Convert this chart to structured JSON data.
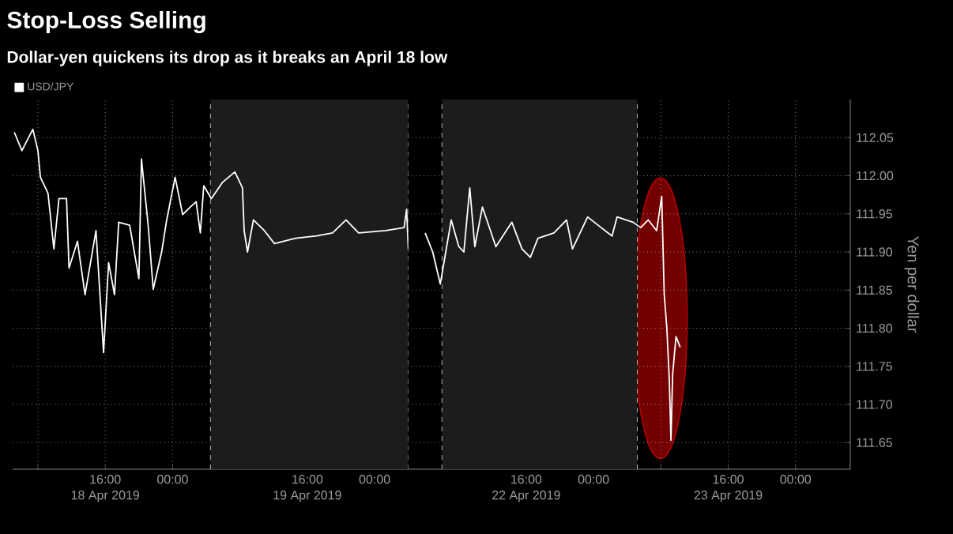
{
  "chart_data": [
    {
      "type": "line",
      "title": "Stop-Loss Selling",
      "subtitle": "Dollar-yen quickens its drop as it breaks an April 18 low",
      "x": [
        "2019-04-18T05:12",
        "2019-04-18T06:06",
        "2019-04-18T07:24",
        "2019-04-18T08:00",
        "2019-04-18T08:18",
        "2019-04-18T09:12",
        "2019-04-18T09:54",
        "2019-04-18T10:30",
        "2019-04-18T11:24",
        "2019-04-18T11:42",
        "2019-04-18T12:42",
        "2019-04-18T13:36",
        "2019-04-18T14:54",
        "2019-04-18T15:48",
        "2019-04-18T16:24",
        "2019-04-18T17:06",
        "2019-04-18T17:36",
        "2019-04-18T18:54",
        "2019-04-18T20:00",
        "2019-04-18T20:18",
        "2019-04-18T21:06",
        "2019-04-18T21:42",
        "2019-04-18T22:42",
        "2019-04-18T23:18",
        "2019-04-19T00:18",
        "2019-04-19T01:12",
        "2019-04-19T02:06",
        "2019-04-19T02:48",
        "2019-04-19T03:18",
        "2019-04-19T03:42",
        "2019-04-19T04:36",
        "2019-04-19T05:54",
        "2019-04-19T07:24",
        "2019-04-19T08:18",
        "2019-04-19T08:30",
        "2019-04-19T08:54",
        "2019-04-19T09:36",
        "2019-04-19T10:54",
        "2019-04-19T12:06",
        "2019-04-19T14:36",
        "2019-04-19T17:06",
        "2019-04-19T19:00",
        "2019-04-19T20:36",
        "2019-04-19T22:06",
        "2019-04-20T01:18",
        "2019-04-20T03:30",
        "2019-04-20T03:48",
        "2019-04-20T04:00"
      ],
      "series": [
        {
          "name": "USD/JPY",
          "color": "#ffffff",
          "values": [
            112.057,
            112.033,
            112.061,
            112.033,
            111.998,
            111.977,
            111.904,
            111.97,
            111.97,
            111.879,
            111.914,
            111.844,
            111.928,
            111.768,
            111.886,
            111.844,
            111.939,
            111.935,
            111.865,
            112.022,
            111.935,
            111.851,
            111.9,
            111.942,
            111.998,
            111.949,
            111.959,
            111.966,
            111.925,
            111.987,
            111.97,
            111.991,
            112.005,
            111.984,
            111.928,
            111.9,
            111.942,
            111.928,
            111.911,
            111.918,
            111.921,
            111.925,
            111.942,
            111.925,
            111.928,
            111.932,
            111.956,
            111.904
          ]
        }
      ],
      "xlim": [
        "2019-04-18T05:00",
        "2019-04-20T04:00"
      ],
      "xticks": [
        {
          "value": "2019-04-18T08:00",
          "label": null
        },
        {
          "value": "2019-04-18T16:00",
          "label": "16:00\n18 Apr 2019"
        },
        {
          "value": "2019-04-19T00:00",
          "label": "00:00"
        },
        {
          "value": "2019-04-19T08:00",
          "label": null
        },
        {
          "value": "2019-04-19T16:00",
          "label": "16:00\n19 Apr 2019"
        },
        {
          "value": "2019-04-20T00:00",
          "label": "00:00"
        }
      ],
      "ylim": [
        111.615,
        112.1
      ],
      "yticks": [
        111.65,
        111.7,
        111.75,
        111.8,
        111.85,
        111.9,
        111.95,
        112,
        112.05
      ],
      "tick_labels": "x",
      "bands": [
        {
          "axis": "x",
          "from": "2019-04-19T04:30",
          "to": "2019-04-20T04:00",
          "color": "#1c1c1c"
        }
      ],
      "ref_lines": [
        {
          "axis": "x",
          "value": "2019-04-19T04:30",
          "color": "#b2b2b2",
          "line_style": "dashed"
        },
        {
          "axis": "x",
          "value": "2019-04-20T04:00",
          "color": "#b2b2b2",
          "line_style": "dashed"
        }
      ],
      "grid": true,
      "legend": "top left",
      "line_style": "solid"
    },
    {
      "type": "line",
      "ylabel": "Yen per dollar",
      "x": [
        "2019-04-22T04:00",
        "2019-04-22T04:54",
        "2019-04-22T05:48",
        "2019-04-22T07:06",
        "2019-04-22T08:00",
        "2019-04-22T08:36",
        "2019-04-22T09:18",
        "2019-04-22T09:54",
        "2019-04-22T10:48",
        "2019-04-22T12:24",
        "2019-04-22T14:18",
        "2019-04-22T15:30",
        "2019-04-22T16:30",
        "2019-04-22T17:24",
        "2019-04-22T19:18",
        "2019-04-22T20:48",
        "2019-04-22T21:30",
        "2019-04-22T23:18",
        "2019-04-23T00:54",
        "2019-04-23T02:12",
        "2019-04-23T02:48",
        "2019-04-23T04:42",
        "2019-04-23T05:36",
        "2019-04-23T06:30",
        "2019-04-23T07:30",
        "2019-04-23T08:06",
        "2019-04-23T08:24",
        "2019-04-23T08:42",
        "2019-04-23T09:00",
        "2019-04-23T09:12",
        "2019-04-23T09:24",
        "2019-04-23T09:48",
        "2019-04-23T10:18"
      ],
      "series": [
        {
          "color": "#ffffff",
          "values": [
            111.925,
            111.9,
            111.858,
            111.942,
            111.907,
            111.9,
            111.984,
            111.907,
            111.959,
            111.907,
            111.939,
            111.904,
            111.893,
            111.918,
            111.925,
            111.942,
            111.904,
            111.946,
            111.932,
            111.921,
            111.946,
            111.939,
            111.932,
            111.942,
            111.928,
            111.973,
            111.844,
            111.802,
            111.733,
            111.653,
            111.74,
            111.789,
            111.775
          ]
        }
      ],
      "xlim": [
        "2019-04-22T02:00",
        "2019-04-24T06:30"
      ],
      "xticks": [
        {
          "value": "2019-04-22T08:00",
          "label": null
        },
        {
          "value": "2019-04-22T16:00",
          "label": "16:00\n22 Apr 2019"
        },
        {
          "value": "2019-04-23T00:00",
          "label": "00:00"
        },
        {
          "value": "2019-04-23T08:00",
          "label": null
        },
        {
          "value": "2019-04-23T16:00",
          "label": "16:00\n23 Apr 2019"
        },
        {
          "value": "2019-04-24T00:00",
          "label": "00:00"
        }
      ],
      "ylim": [
        111.615,
        112.1
      ],
      "yticks": [
        {
          "value": 111.65,
          "label": "111.65"
        },
        {
          "value": 111.7,
          "label": "111.70"
        },
        {
          "value": 111.75,
          "label": "111.75"
        },
        {
          "value": 111.8,
          "label": "111.80"
        },
        {
          "value": 111.85,
          "label": "111.85"
        },
        {
          "value": 111.9,
          "label": "111.90"
        },
        {
          "value": 111.95,
          "label": "111.95"
        },
        {
          "value": 112,
          "label": "112.00"
        },
        {
          "value": 112.05,
          "label": "112.05"
        }
      ],
      "bands": [
        {
          "axis": "x",
          "from": "2019-04-22T06:00",
          "to": "2019-04-23T05:12",
          "color": "#1c1c1c"
        }
      ],
      "ref_lines": [
        {
          "axis": "x",
          "value": "2019-04-22T06:00",
          "color": "#b2b2b2",
          "line_style": "dashed"
        },
        {
          "axis": "x",
          "value": "2019-04-23T05:12",
          "color": "#b2b2b2",
          "line_style": "dashed"
        }
      ],
      "grid": true,
      "line_style": "solid"
    }
  ]
}
